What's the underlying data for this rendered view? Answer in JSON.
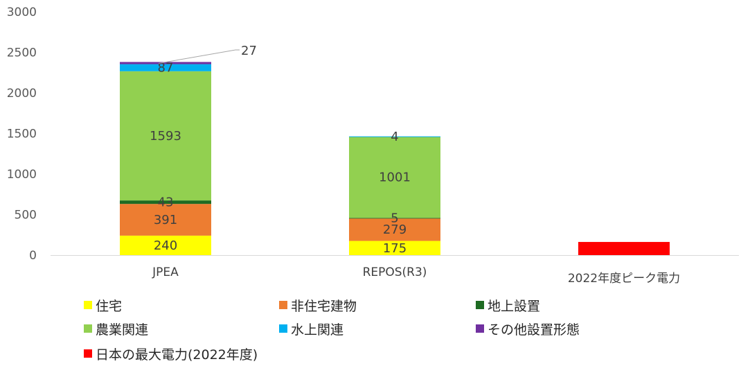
{
  "chart_data": {
    "type": "bar",
    "stacked": true,
    "categories": [
      "JPEA",
      "REPOS(R3)",
      "2022年度ピーク電力"
    ],
    "ylim": [
      0,
      3000
    ],
    "yticks": [
      0,
      500,
      1000,
      1500,
      2000,
      2500,
      3000
    ],
    "grid": false,
    "legend_position": "bottom",
    "series": [
      {
        "name": "住宅",
        "color": "#FFFF00",
        "values": [
          240,
          175,
          null
        ],
        "labels": [
          "240",
          "175",
          ""
        ]
      },
      {
        "name": "非住宅建物",
        "color": "#ED7D31",
        "values": [
          391,
          279,
          null
        ],
        "labels": [
          "391",
          "279",
          ""
        ]
      },
      {
        "name": "地上設置",
        "color": "#1E6B22",
        "values": [
          43,
          5,
          null
        ],
        "labels": [
          "43",
          "5",
          ""
        ]
      },
      {
        "name": "農業関連",
        "color": "#92D050",
        "values": [
          1593,
          1001,
          null
        ],
        "labels": [
          "1593",
          "1001",
          ""
        ]
      },
      {
        "name": "水上関連",
        "color": "#00B0F0",
        "values": [
          87,
          4,
          null
        ],
        "labels": [
          "87",
          "4",
          ""
        ]
      },
      {
        "name": "その他設置形態",
        "color": "#7030A0",
        "values": [
          27,
          null,
          null
        ],
        "labels": [
          "27",
          "",
          ""
        ]
      },
      {
        "name": "日本の最大電力(2022年度)",
        "color": "#FF0000",
        "values": [
          null,
          null,
          162
        ],
        "labels": [
          "",
          "",
          ""
        ]
      }
    ]
  }
}
